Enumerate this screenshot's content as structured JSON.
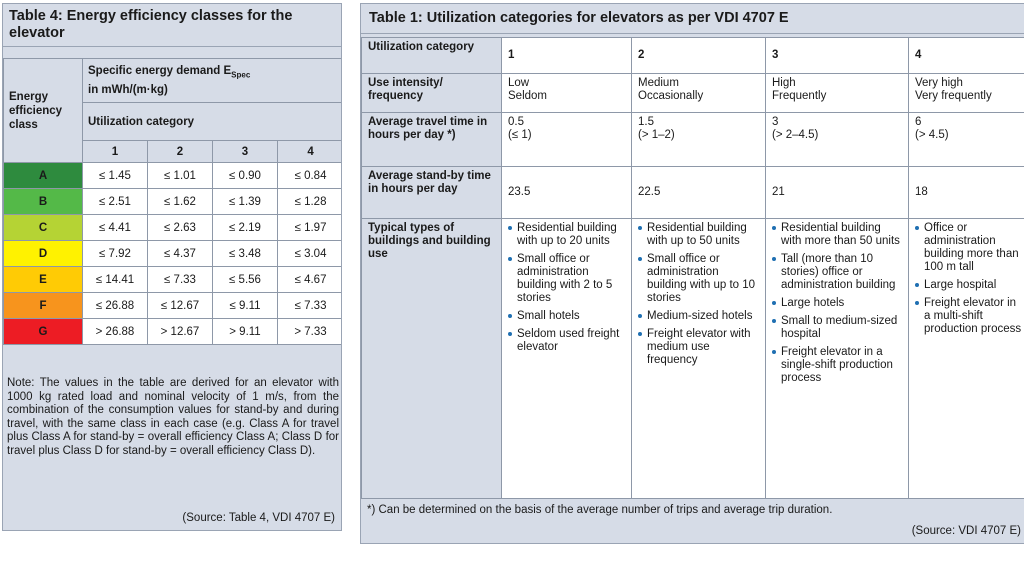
{
  "table4": {
    "title": "Table 4: Energy efficiency classes for the elevator",
    "row_header": "Energy efficiency class",
    "spec_header": "Specific energy demand E",
    "spec_sub": "Spec",
    "spec_unit": "in mWh/(m·kg)",
    "util_header": "Utilization category",
    "cols": [
      "1",
      "2",
      "3",
      "4"
    ],
    "rows": [
      {
        "cls": "A",
        "color": "#2e8b3e",
        "vals": [
          "≤ 1.45",
          "≤ 1.01",
          "≤ 0.90",
          "≤ 0.84"
        ]
      },
      {
        "cls": "B",
        "color": "#54b948",
        "vals": [
          "≤ 2.51",
          "≤ 1.62",
          "≤ 1.39",
          "≤ 1.28"
        ]
      },
      {
        "cls": "C",
        "color": "#b5d334",
        "vals": [
          "≤ 4.41",
          "≤ 2.63",
          "≤ 2.19",
          "≤ 1.97"
        ]
      },
      {
        "cls": "D",
        "color": "#fff200",
        "vals": [
          "≤ 7.92",
          "≤ 4.37",
          "≤ 3.48",
          "≤ 3.04"
        ]
      },
      {
        "cls": "E",
        "color": "#ffcb05",
        "vals": [
          "≤ 14.41",
          "≤ 7.33",
          "≤ 5.56",
          "≤ 4.67"
        ]
      },
      {
        "cls": "F",
        "color": "#f7941d",
        "vals": [
          "≤ 26.88",
          "≤ 12.67",
          "≤ 9.11",
          "≤ 7.33"
        ]
      },
      {
        "cls": "G",
        "color": "#ed1c24",
        "vals": [
          "> 26.88",
          "> 12.67",
          "> 9.11",
          "> 7.33"
        ]
      }
    ],
    "note": "Note: The values in the table are derived for an elevator with 1000 kg rated load and nominal velocity of 1 m/s, from the combination of the consumption values for stand-by and during travel, with the same class in each case (e.g. Class A for travel plus Class A for stand-by = overall efficiency Class A; Class D for travel plus Class D for stand-by = overall efficiency Class D).",
    "source": "(Source: Table 4, VDI 4707 E)"
  },
  "table1": {
    "title": "Table 1: Utilization categories for elevators as per  VDI 4707 E",
    "header_label": "Utilization category",
    "cols": [
      "1",
      "2",
      "3",
      "4"
    ],
    "rows": [
      {
        "label": "Use intensity/ frequency",
        "cells": [
          "Low\nSeldom",
          "Medium\nOccasionally",
          "High\nFrequently",
          "Very high\nVery frequently"
        ]
      },
      {
        "label": "Average travel time in hours per day *)",
        "cells": [
          "0.5\n(≤ 1)",
          "1.5\n(> 1–2)",
          "3\n(> 2–4.5)",
          "6\n(> 4.5)"
        ]
      },
      {
        "label": "Average stand-by time in hours per day",
        "cells": [
          "23.5",
          "22.5",
          "21",
          "18"
        ]
      }
    ],
    "types_label": "Typical types of buildings and building use",
    "types": [
      [
        "Residential building with up to 20 units",
        "Small office or administration building with 2 to 5 stories",
        "Small hotels",
        "Seldom used freight elevator"
      ],
      [
        "Residential building with up to 50 units",
        "Small office or administration building with up to 10 stories",
        "Medium-sized hotels",
        "Freight elevator with medium use frequency"
      ],
      [
        "Residential building with more than 50 units",
        "Tall (more than 10 stories) office or administration building",
        "Large hotels",
        "Small to medium-sized hospital",
        "Freight elevator in a single-shift production process"
      ],
      [
        "Office or administration building more than 100 m tall",
        "Large hospital",
        "Freight elevator in a multi-shift production process"
      ]
    ],
    "footnote": "*) Can be determined on the basis of the average number of trips and average trip duration.",
    "source": "(Source: VDI 4707 E)"
  }
}
